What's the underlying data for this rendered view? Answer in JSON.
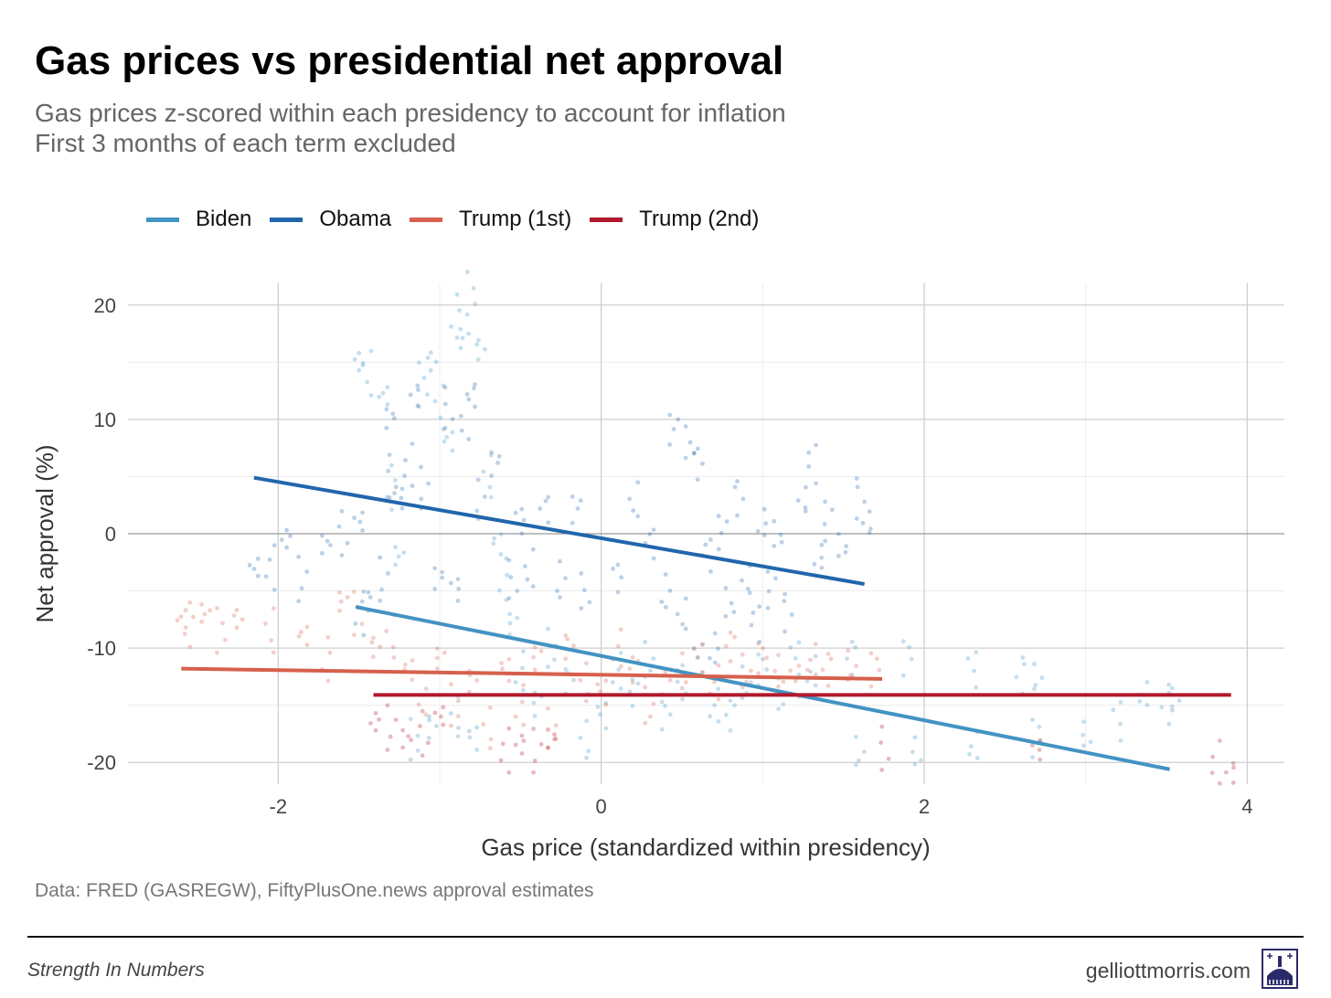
{
  "header": {
    "title": "Gas prices vs presidential net approval",
    "subtitle_line1": "Gas prices z-scored within each presidency to account for inflation",
    "subtitle_line2": "First 3 months of each term excluded"
  },
  "footer": {
    "source": "Data: FRED (GASREGW), FiftyPlusOne.news approval estimates",
    "brand": "Strength In Numbers",
    "site": "gelliottmorris.com",
    "logo_icon": "capitol-dome-logo-icon"
  },
  "chart_data": {
    "type": "scatter",
    "title": "Gas prices vs presidential net approval",
    "xlabel": "Gas price (standardized within presidency)",
    "ylabel": "Net approval (%)",
    "xlim": [
      -2.93,
      4.23
    ],
    "ylim": [
      -21.9,
      21.9
    ],
    "xticks": [
      -2,
      0,
      2,
      4
    ],
    "xtick_labels": [
      "-2",
      "0",
      "2",
      "4"
    ],
    "yticks": [
      20,
      10,
      0,
      -10,
      -20
    ],
    "ytick_labels": [
      "20",
      "10",
      "0",
      "-10",
      "-20"
    ],
    "grid": true,
    "legend_position": "top-left",
    "series": [
      {
        "name": "Biden",
        "color": "#4393c3",
        "trend": [
          [
            -1.52,
            -6.4
          ],
          [
            3.52,
            -20.6
          ]
        ],
        "points": [
          [
            -1.5,
            15
          ],
          [
            -1.45,
            14
          ],
          [
            -1.35,
            12
          ],
          [
            -1.3,
            4
          ],
          [
            -1.25,
            -2
          ],
          [
            -1.1,
            13
          ],
          [
            -1.05,
            15
          ],
          [
            -1.0,
            11
          ],
          [
            -0.95,
            8
          ],
          [
            -0.9,
            19
          ],
          [
            -0.85,
            17
          ],
          [
            -0.8,
            21
          ],
          [
            -0.75,
            16
          ],
          [
            -0.7,
            5
          ],
          [
            -0.65,
            -1
          ],
          [
            -0.6,
            -4
          ],
          [
            -0.55,
            -8
          ],
          [
            -1.15,
            -18
          ],
          [
            -1.05,
            -17
          ],
          [
            -0.9,
            -16
          ],
          [
            -0.8,
            -18
          ],
          [
            -0.5,
            -12
          ],
          [
            -0.4,
            -15
          ],
          [
            -0.3,
            -10
          ],
          [
            -0.2,
            -13
          ],
          [
            -0.1,
            -18
          ],
          [
            0.0,
            -16
          ],
          [
            0.1,
            -12
          ],
          [
            0.2,
            -14
          ],
          [
            0.3,
            -11
          ],
          [
            0.4,
            -16
          ],
          [
            0.5,
            -13
          ],
          [
            0.6,
            -11
          ],
          [
            0.7,
            -15
          ],
          [
            0.8,
            -16
          ],
          [
            0.9,
            -13
          ],
          [
            1.0,
            -12
          ],
          [
            1.1,
            -14
          ],
          [
            1.2,
            -11
          ],
          [
            1.3,
            -12
          ],
          [
            1.55,
            -11
          ],
          [
            1.6,
            -19
          ],
          [
            1.9,
            -11
          ],
          [
            1.95,
            -19
          ],
          [
            2.3,
            -12
          ],
          [
            2.3,
            -18.5
          ],
          [
            2.6,
            -12.5
          ],
          [
            2.7,
            -12.5
          ],
          [
            2.7,
            -18
          ],
          [
            3.0,
            -17.5
          ],
          [
            3.2,
            -16.5
          ],
          [
            3.35,
            -14
          ],
          [
            3.5,
            -15
          ],
          [
            3.55,
            -14.5
          ]
        ]
      },
      {
        "name": "Obama",
        "color": "#2166ac",
        "trend": [
          [
            -2.15,
            4.9
          ],
          [
            1.63,
            -4.4
          ]
        ],
        "points": [
          [
            -2.15,
            -3
          ],
          [
            -2.05,
            -3
          ],
          [
            -1.95,
            -0.5
          ],
          [
            -1.85,
            -4
          ],
          [
            -1.7,
            -1
          ],
          [
            -1.6,
            0
          ],
          [
            -1.5,
            1
          ],
          [
            -1.5,
            -7
          ],
          [
            -1.45,
            -6
          ],
          [
            -1.35,
            -4
          ],
          [
            -1.3,
            10
          ],
          [
            -1.3,
            5
          ],
          [
            -1.25,
            3
          ],
          [
            -1.2,
            6
          ],
          [
            -1.15,
            12
          ],
          [
            -1.1,
            4
          ],
          [
            -1.0,
            -4
          ],
          [
            -0.95,
            11
          ],
          [
            -0.9,
            -5
          ],
          [
            -0.85,
            10
          ],
          [
            -0.8,
            12
          ],
          [
            -0.75,
            3
          ],
          [
            -0.65,
            6
          ],
          [
            -0.55,
            -4
          ],
          [
            -0.5,
            1
          ],
          [
            -0.45,
            -3
          ],
          [
            -0.35,
            2
          ],
          [
            -0.25,
            -4
          ],
          [
            -0.15,
            2
          ],
          [
            -0.1,
            -5
          ],
          [
            0.1,
            -4
          ],
          [
            0.2,
            3
          ],
          [
            0.3,
            -1
          ],
          [
            0.4,
            -5
          ],
          [
            0.45,
            9
          ],
          [
            0.55,
            8
          ],
          [
            0.6,
            6
          ],
          [
            0.5,
            -7
          ],
          [
            0.65,
            -2
          ],
          [
            0.7,
            -10
          ],
          [
            0.75,
            0
          ],
          [
            0.8,
            -6
          ],
          [
            0.85,
            3
          ],
          [
            0.9,
            -4
          ],
          [
            0.95,
            -8
          ],
          [
            1.0,
            1
          ],
          [
            1.05,
            -5
          ],
          [
            1.1,
            0
          ],
          [
            1.15,
            -7
          ],
          [
            1.25,
            3
          ],
          [
            1.3,
            6
          ],
          [
            1.35,
            -2
          ],
          [
            1.4,
            1
          ],
          [
            1.5,
            -1
          ],
          [
            1.6,
            3
          ],
          [
            1.65,
            1
          ]
        ]
      },
      {
        "name": "Trump (1st)",
        "color": "#d6604d",
        "trend": [
          [
            -2.6,
            -11.8
          ],
          [
            1.74,
            -12.7
          ]
        ],
        "points": [
          [
            -2.6,
            -7.5
          ],
          [
            -2.55,
            -8
          ],
          [
            -2.45,
            -7
          ],
          [
            -2.35,
            -8.5
          ],
          [
            -2.25,
            -7.5
          ],
          [
            -2.05,
            -8.5
          ],
          [
            -1.85,
            -9
          ],
          [
            -1.7,
            -11
          ],
          [
            -1.6,
            -6
          ],
          [
            -1.5,
            -7
          ],
          [
            -1.4,
            -10
          ],
          [
            -1.3,
            -9
          ],
          [
            -1.2,
            -12
          ],
          [
            -1.1,
            -14
          ],
          [
            -1.0,
            -11
          ],
          [
            -0.9,
            -15
          ],
          [
            -0.8,
            -13
          ],
          [
            -0.7,
            -17
          ],
          [
            -0.6,
            -12
          ],
          [
            -0.5,
            -15
          ],
          [
            -0.4,
            -11
          ],
          [
            -0.3,
            -17
          ],
          [
            -0.2,
            -10
          ],
          [
            -0.1,
            -13
          ],
          [
            0.0,
            -14
          ],
          [
            0.1,
            -10
          ],
          [
            0.2,
            -12
          ],
          [
            0.3,
            -15
          ],
          [
            0.4,
            -13
          ],
          [
            0.5,
            -12
          ],
          [
            0.6,
            -11
          ],
          [
            0.7,
            -13
          ],
          [
            0.8,
            -10
          ],
          [
            0.9,
            -12
          ],
          [
            1.0,
            -11
          ],
          [
            1.1,
            -12
          ],
          [
            1.2,
            -13
          ],
          [
            1.3,
            -11
          ],
          [
            1.4,
            -12
          ],
          [
            1.55,
            -11.5
          ],
          [
            1.7,
            -12
          ]
        ]
      },
      {
        "name": "Trump (2nd)",
        "color": "#b2182b",
        "trend": [
          [
            -1.41,
            -14.1
          ],
          [
            3.9,
            -14.1
          ]
        ],
        "points": [
          [
            -1.4,
            -16.5
          ],
          [
            -1.3,
            -17
          ],
          [
            -1.2,
            -18
          ],
          [
            -1.1,
            -17.5
          ],
          [
            -1.0,
            -16
          ],
          [
            -0.6,
            -19
          ],
          [
            -0.5,
            -18.5
          ],
          [
            -0.4,
            -19
          ],
          [
            -0.3,
            -18
          ],
          [
            1.75,
            -18.8
          ],
          [
            2.7,
            -19
          ],
          [
            3.8,
            -20
          ],
          [
            3.9,
            -21
          ]
        ]
      }
    ]
  }
}
